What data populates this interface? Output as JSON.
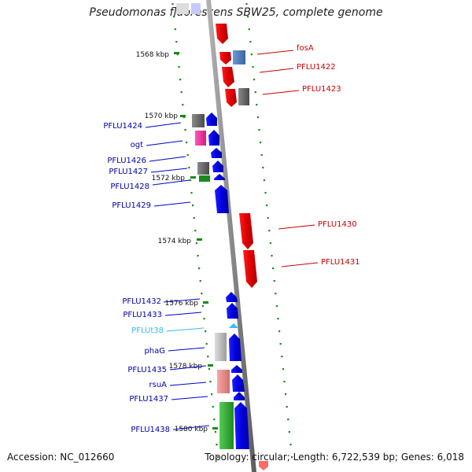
{
  "title": "Pseudomonas fluorescens SBW25, complete genome",
  "footer": {
    "accession": "Accession: NC_012660",
    "summary": "Topology: circular; Length: 6,722,539 bp; Genes: 6,018"
  },
  "colors": {
    "forward_gene": "#ff0000",
    "reverse_gene": "#0000ee",
    "backbone": "#8c8c8c",
    "dot_track": "#1a8a1a",
    "trna": "#33bbff",
    "gray_feature": "#6b6b6b",
    "light_gray_feature": "#c8c8c8",
    "magenta_feature": "#ff33aa",
    "pink_feature": "#f08c8c",
    "steelblue_feature": "#4a7fbf",
    "green_feature": "#33aa33"
  },
  "ruler": [
    "1568 kbp",
    "1570 kbp",
    "1572 kbp",
    "1574 kbp",
    "1576 kbp",
    "1578 kbp",
    "1580 kbp"
  ],
  "labels_right": [
    {
      "text": "fosA",
      "color": "#cc0000"
    },
    {
      "text": "PFLU1422",
      "color": "#cc0000"
    },
    {
      "text": "PFLU1423",
      "color": "#cc0000"
    },
    {
      "text": "PFLU1430",
      "color": "#cc0000"
    },
    {
      "text": "PFLU1431",
      "color": "#cc0000"
    }
  ],
  "labels_left": [
    {
      "text": "PFLU1424",
      "color": "#0000aa"
    },
    {
      "text": "ogt",
      "color": "#0000aa"
    },
    {
      "text": "PFLU1426",
      "color": "#0000aa"
    },
    {
      "text": "PFLU1427",
      "color": "#0000aa"
    },
    {
      "text": "PFLU1428",
      "color": "#0000aa"
    },
    {
      "text": "PFLU1429",
      "color": "#0000aa"
    },
    {
      "text": "PFLU1432",
      "color": "#0000aa"
    },
    {
      "text": "PFLU1433",
      "color": "#0000aa"
    },
    {
      "text": "PFLUt38",
      "color": "#33bbee"
    },
    {
      "text": "phaG",
      "color": "#0000aa"
    },
    {
      "text": "PFLU1435",
      "color": "#0000aa"
    },
    {
      "text": "rsuA",
      "color": "#0000aa"
    },
    {
      "text": "PFLU1437",
      "color": "#0000aa"
    },
    {
      "text": "PFLU1438",
      "color": "#0000aa"
    }
  ]
}
